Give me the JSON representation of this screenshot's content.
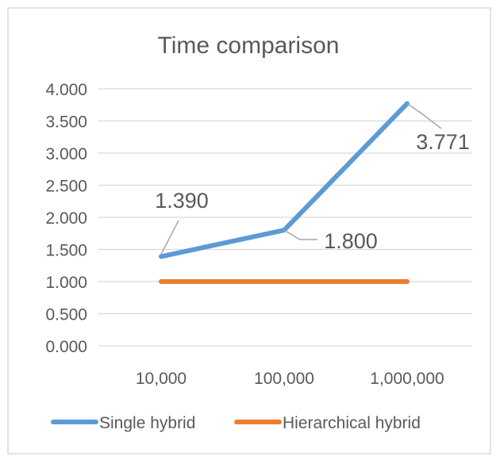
{
  "chart_data": {
    "type": "line",
    "title": "Time comparison",
    "categories": [
      "10,000",
      "100,000",
      "1,000,000"
    ],
    "series": [
      {
        "name": "Single hybrid",
        "values": [
          1.39,
          1.8,
          3.771
        ],
        "color": "#5B9BD5",
        "data_labels": [
          "1.390",
          "1.800",
          "3.771"
        ]
      },
      {
        "name": "Hierarchical hybrid",
        "values": [
          1.0,
          1.0,
          1.0
        ],
        "color": "#ED7D31"
      }
    ],
    "ylim": [
      0,
      4
    ],
    "y_ticks": [
      {
        "value": 0.0,
        "label": "0.000"
      },
      {
        "value": 0.5,
        "label": "0.500"
      },
      {
        "value": 1.0,
        "label": "1.000"
      },
      {
        "value": 1.5,
        "label": "1.500"
      },
      {
        "value": 2.0,
        "label": "2.000"
      },
      {
        "value": 2.5,
        "label": "2.500"
      },
      {
        "value": 3.0,
        "label": "3.000"
      },
      {
        "value": 3.5,
        "label": "3.500"
      },
      {
        "value": 4.0,
        "label": "4.000"
      }
    ],
    "xlabel": "",
    "ylabel": "",
    "grid": true,
    "legend_position": "bottom",
    "colors": {
      "gridline": "#D9D9D9",
      "text": "#595959",
      "leader": "#A6A6A6",
      "border": "#D9D9D9"
    }
  }
}
